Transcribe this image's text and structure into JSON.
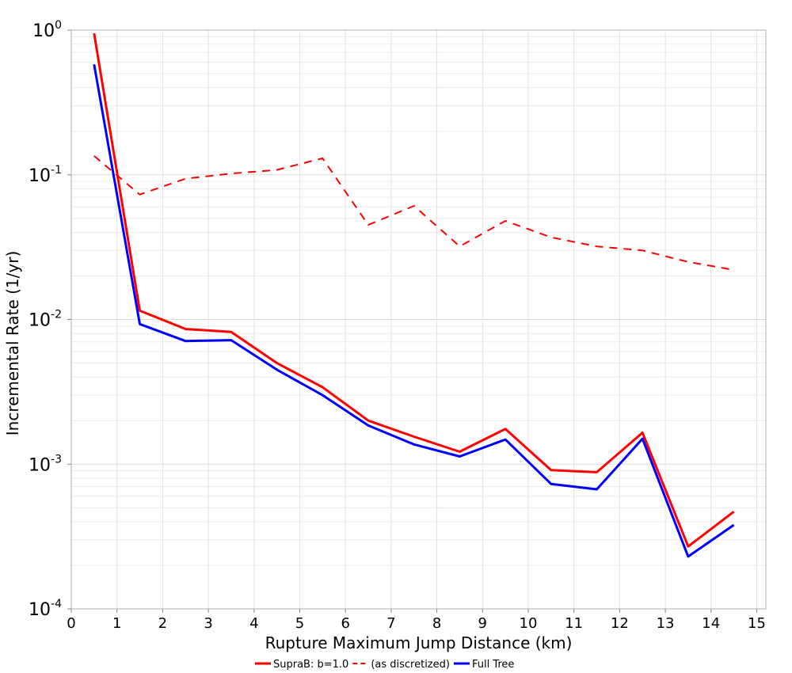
{
  "chart_data": {
    "type": "line",
    "xlabel": "Rupture Maximum Jump Distance (km)",
    "ylabel": "Incremental Rate (1/yr)",
    "xlim": [
      0,
      15.2
    ],
    "ylim": [
      0.0001,
      1
    ],
    "yscale": "log",
    "grid": true,
    "legend_position": "bottom",
    "x_ticks": [
      0,
      1,
      2,
      3,
      4,
      5,
      6,
      7,
      8,
      9,
      10,
      11,
      12,
      13,
      14,
      15
    ],
    "y_ticks": [
      {
        "base": "10",
        "exp": "-4",
        "value": 0.0001
      },
      {
        "base": "10",
        "exp": "-3",
        "value": 0.001
      },
      {
        "base": "10",
        "exp": "-2",
        "value": 0.01
      },
      {
        "base": "10",
        "exp": "-1",
        "value": 0.1
      },
      {
        "base": "10",
        "exp": "0",
        "value": 1
      }
    ],
    "x": [
      0.5,
      1.5,
      2.5,
      3.5,
      4.5,
      5.5,
      6.5,
      7.5,
      8.5,
      9.5,
      10.5,
      11.5,
      12.5,
      13.5,
      14.5
    ],
    "series": [
      {
        "name": "SupraB: b=1.0",
        "color": "#ff0000",
        "dash": "solid",
        "values": [
          0.95,
          0.0115,
          0.0086,
          0.0082,
          0.005,
          0.0034,
          0.002,
          0.00155,
          0.00122,
          0.00175,
          0.00091,
          0.00088,
          0.00165,
          0.00027,
          0.00047
        ]
      },
      {
        "name": "(as discretized)",
        "color": "#ff0000",
        "dash": "dashed",
        "values": [
          0.135,
          0.073,
          0.094,
          0.102,
          0.108,
          0.13,
          0.045,
          0.061,
          0.032,
          0.048,
          0.037,
          0.032,
          0.03,
          0.025,
          0.022
        ]
      },
      {
        "name": "Full Tree",
        "color": "#0000ff",
        "dash": "solid",
        "values": [
          0.58,
          0.0093,
          0.0071,
          0.0072,
          0.0045,
          0.003,
          0.00185,
          0.00137,
          0.00113,
          0.00148,
          0.00073,
          0.00067,
          0.0015,
          0.00023,
          0.00038
        ]
      }
    ]
  }
}
